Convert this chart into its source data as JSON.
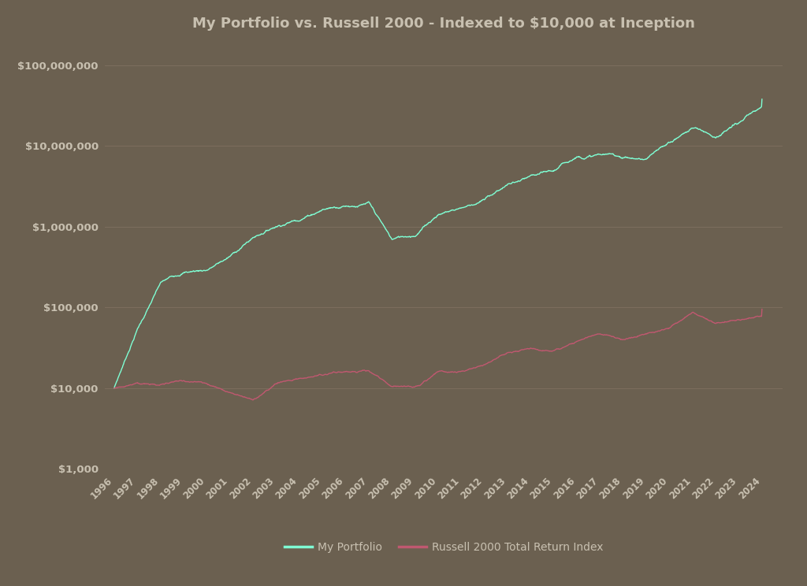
{
  "title": "My Portfolio vs. Russell 2000 - Indexed to $10,000 at Inception",
  "background_color": "#6b6050",
  "text_color": "#c8c0b0",
  "grid_color": "#807060",
  "line_color_portfolio": "#7fffd4",
  "line_color_russell": "#c05870",
  "legend_labels": [
    "My Portfolio",
    "Russell 2000 Total Return Index"
  ],
  "y_ticks": [
    1000,
    10000,
    100000,
    1000000,
    10000000,
    100000000
  ],
  "y_tick_labels": [
    "$1,000",
    "$10,000",
    "$100,000",
    "$1,000,000",
    "$10,000,000",
    "$100,000,000"
  ],
  "ylim": [
    1500,
    200000000
  ],
  "start_year": 1996,
  "end_year": 2024,
  "years": [
    1996,
    1997,
    1998,
    1999,
    2000,
    2001,
    2002,
    2003,
    2004,
    2005,
    2006,
    2007,
    2008,
    2009,
    2010,
    2011,
    2012,
    2013,
    2014,
    2015,
    2016,
    2017,
    2018,
    2019,
    2020,
    2021,
    2022,
    2023,
    2024
  ],
  "portfolio_values": [
    10000,
    55000,
    200000,
    280000,
    310000,
    450000,
    780000,
    1150000,
    1500000,
    2100000,
    2500000,
    2700000,
    900000,
    1050000,
    2000000,
    2500000,
    3200000,
    5000000,
    5800000,
    6200000,
    9500000,
    10500000,
    9800000,
    9200000,
    14000000,
    22000000,
    18000000,
    26000000,
    38000000
  ],
  "russell_values": [
    10000,
    12500,
    11500,
    13500,
    12500,
    10500,
    8800,
    14000,
    17000,
    19000,
    22000,
    23000,
    14000,
    14000,
    21000,
    21000,
    25000,
    34000,
    36000,
    33000,
    40000,
    50000,
    42000,
    52000,
    62000,
    95000,
    72000,
    84000,
    95000
  ],
  "noise_scale_port": 0.06,
  "noise_scale_russ": 0.04,
  "n_points": 1500
}
